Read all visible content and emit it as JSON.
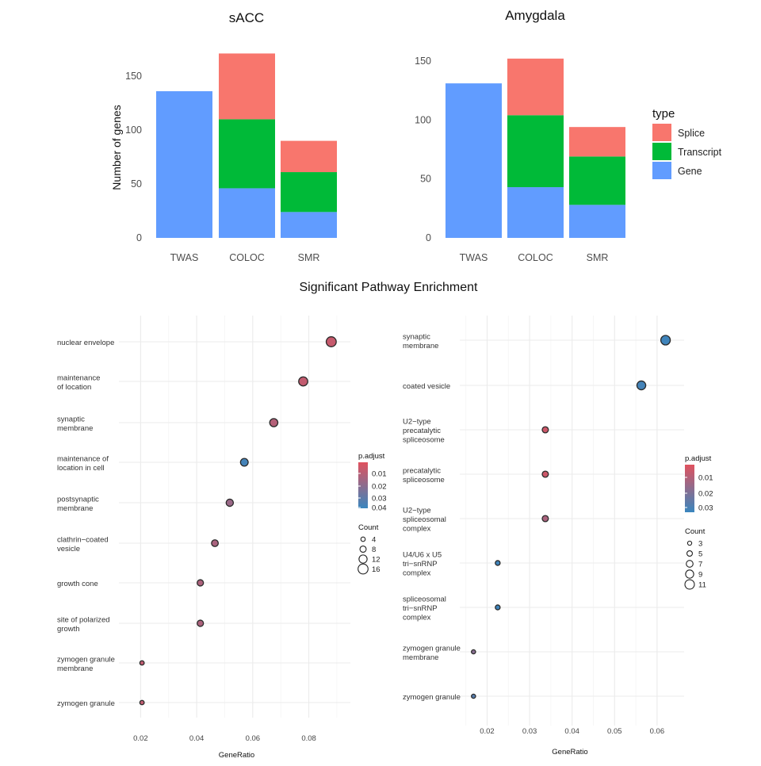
{
  "page": {
    "section_title": "Significant Pathway Enrichment"
  },
  "legends": {
    "type": {
      "title": "type",
      "entries": [
        {
          "label": "Splice",
          "color": "#F8766D"
        },
        {
          "label": "Transcript",
          "color": "#00BA38"
        },
        {
          "label": "Gene",
          "color": "#619CFF"
        }
      ]
    },
    "left_dot": {
      "color_title": "p.adjust",
      "color_ticks": [
        "0.01",
        "0.02",
        "0.03",
        "0.04"
      ],
      "size_title": "Count",
      "size_entries": [
        "4",
        "8",
        "12",
        "16"
      ]
    },
    "right_dot": {
      "color_title": "p.adjust",
      "color_ticks": [
        "0.01",
        "0.02",
        "0.03"
      ],
      "size_title": "Count",
      "size_entries": [
        "3",
        "5",
        "7",
        "9",
        "11"
      ]
    }
  },
  "chart_data": [
    {
      "type": "bar",
      "stacked": true,
      "title": "sACC",
      "ylabel": "Number of genes",
      "xlabel": "",
      "categories": [
        "TWAS",
        "COLOC",
        "SMR"
      ],
      "ylim": [
        0,
        175
      ],
      "yticks": [
        "0",
        "50",
        "100",
        "150"
      ],
      "series": [
        {
          "name": "Gene",
          "color": "#619CFF",
          "values": [
            136,
            46,
            24
          ]
        },
        {
          "name": "Transcript",
          "color": "#00BA38",
          "values": [
            0,
            64,
            37
          ]
        },
        {
          "name": "Splice",
          "color": "#F8766D",
          "values": [
            0,
            61,
            29
          ]
        }
      ],
      "legend": "right"
    },
    {
      "type": "bar",
      "stacked": true,
      "title": "Amygdala",
      "ylabel": "",
      "xlabel": "",
      "categories": [
        "TWAS",
        "COLOC",
        "SMR"
      ],
      "ylim": [
        0,
        160
      ],
      "yticks": [
        "0",
        "50",
        "100",
        "150"
      ],
      "series": [
        {
          "name": "Gene",
          "color": "#619CFF",
          "values": [
            131,
            43,
            28
          ]
        },
        {
          "name": "Transcript",
          "color": "#00BA38",
          "values": [
            0,
            61,
            41
          ]
        },
        {
          "name": "Splice",
          "color": "#F8766D",
          "values": [
            0,
            48,
            25
          ]
        }
      ],
      "legend": "right"
    },
    {
      "type": "scatter",
      "title": "",
      "xlabel": "GeneRatio",
      "ylabel": "",
      "xlim": [
        0.0165,
        0.092
      ],
      "xticks": [
        "0.02",
        "0.04",
        "0.06",
        "0.08"
      ],
      "padj_range": [
        0.0,
        0.045
      ],
      "count_range": [
        2,
        17
      ],
      "terms": [
        {
          "label": [
            "nuclear envelope"
          ],
          "x": 0.088,
          "count": 16,
          "padj": 0.007
        },
        {
          "label": [
            "maintenance",
            "of location"
          ],
          "x": 0.078,
          "count": 14,
          "padj": 0.008
        },
        {
          "label": [
            "synaptic",
            "membrane"
          ],
          "x": 0.0675,
          "count": 12,
          "padj": 0.012
        },
        {
          "label": [
            "maintenance of",
            "location in cell"
          ],
          "x": 0.057,
          "count": 11,
          "padj": 0.042
        },
        {
          "label": [
            "postsynaptic",
            "membrane"
          ],
          "x": 0.0518,
          "count": 10,
          "padj": 0.019
        },
        {
          "label": [
            "clathrin−coated",
            "vesicle"
          ],
          "x": 0.0465,
          "count": 9,
          "padj": 0.015
        },
        {
          "label": [
            "growth cone"
          ],
          "x": 0.0413,
          "count": 8,
          "padj": 0.014
        },
        {
          "label": [
            "site of polarized",
            "growth"
          ],
          "x": 0.0413,
          "count": 8,
          "padj": 0.014
        },
        {
          "label": [
            "zymogen granule",
            "membrane"
          ],
          "x": 0.0205,
          "count": 4,
          "padj": 0.009
        },
        {
          "label": [
            "zymogen granule"
          ],
          "x": 0.0205,
          "count": 4,
          "padj": 0.009
        }
      ]
    },
    {
      "type": "scatter",
      "title": "",
      "xlabel": "GeneRatio",
      "ylabel": "",
      "xlim": [
        0.0145,
        0.0645
      ],
      "xticks": [
        "0.02",
        "0.03",
        "0.04",
        "0.05",
        "0.06"
      ],
      "padj_range": [
        0.0,
        0.034
      ],
      "count_range": [
        2,
        12
      ],
      "terms": [
        {
          "label": [
            "synaptic",
            "membrane"
          ],
          "x": 0.062,
          "count": 11,
          "padj": 0.033
        },
        {
          "label": [
            "coated vesicle"
          ],
          "x": 0.0563,
          "count": 10,
          "padj": 0.032
        },
        {
          "label": [
            "U2−type",
            "precatalytic",
            "spliceosome"
          ],
          "x": 0.0337,
          "count": 6,
          "padj": 0.004
        },
        {
          "label": [
            "precatalytic",
            "spliceosome"
          ],
          "x": 0.0337,
          "count": 6,
          "padj": 0.004
        },
        {
          "label": [
            "U2−type",
            "spliceosomal",
            "complex"
          ],
          "x": 0.0337,
          "count": 6,
          "padj": 0.011
        },
        {
          "label": [
            "U4/U6 x U5",
            "tri−snRNP",
            "complex"
          ],
          "x": 0.0225,
          "count": 4,
          "padj": 0.033
        },
        {
          "label": [
            "spliceosomal",
            "tri−snRNP",
            "complex"
          ],
          "x": 0.0225,
          "count": 4,
          "padj": 0.033
        },
        {
          "label": [
            "zymogen granule",
            "membrane"
          ],
          "x": 0.0168,
          "count": 3,
          "padj": 0.018
        },
        {
          "label": [
            "zymogen granule"
          ],
          "x": 0.0168,
          "count": 3,
          "padj": 0.028
        }
      ]
    }
  ]
}
